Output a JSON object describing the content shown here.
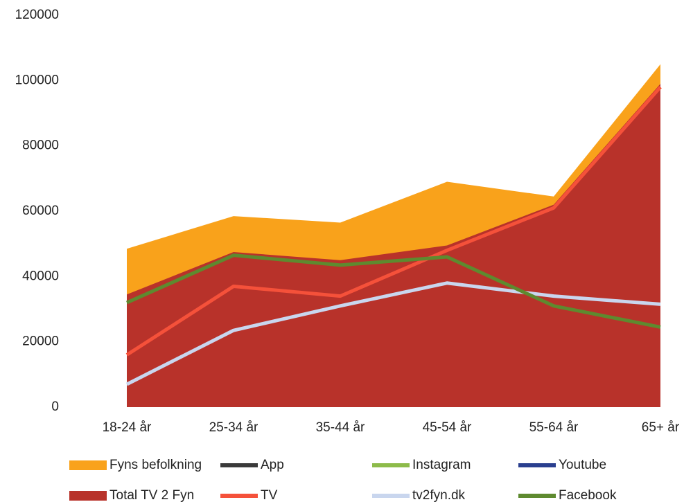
{
  "chart_data": {
    "type": "area",
    "categories": [
      "18-24 år",
      "25-34 år",
      "35-44 år",
      "45-54 år",
      "55-64 år",
      "65+ år"
    ],
    "ylim": [
      0,
      120000
    ],
    "yticks": [
      0,
      20000,
      40000,
      60000,
      80000,
      100000,
      120000
    ],
    "series": [
      {
        "name": "Fyns befolkning",
        "type": "area",
        "color": "#f9a21b",
        "values": [
          48500,
          58500,
          56500,
          69000,
          64500,
          105000
        ]
      },
      {
        "name": "App",
        "type": "line",
        "color": "#3a3a3a",
        "values": [
          null,
          null,
          null,
          null,
          null,
          null
        ]
      },
      {
        "name": "Instagram",
        "type": "line",
        "color": "#8dbb4a",
        "values": [
          null,
          null,
          null,
          null,
          null,
          null
        ]
      },
      {
        "name": "Youtube",
        "type": "line",
        "color": "#2a3f8f",
        "values": [
          null,
          null,
          null,
          null,
          null,
          null
        ]
      },
      {
        "name": "Total TV 2 Fyn",
        "type": "area",
        "color": "#b8322a",
        "values": [
          34500,
          47500,
          45000,
          49500,
          62000,
          99000
        ]
      },
      {
        "name": "TV",
        "type": "line",
        "color": "#f5513a",
        "values": [
          16000,
          37000,
          34000,
          48000,
          61000,
          98000
        ]
      },
      {
        "name": "tv2fyn.dk",
        "type": "line",
        "color": "#c9d6ee",
        "values": [
          7000,
          23500,
          31000,
          38000,
          34000,
          31500
        ]
      },
      {
        "name": "Facebook",
        "type": "line",
        "color": "#5e8a2f",
        "values": [
          32000,
          46500,
          43500,
          46000,
          31000,
          24500
        ]
      }
    ]
  }
}
